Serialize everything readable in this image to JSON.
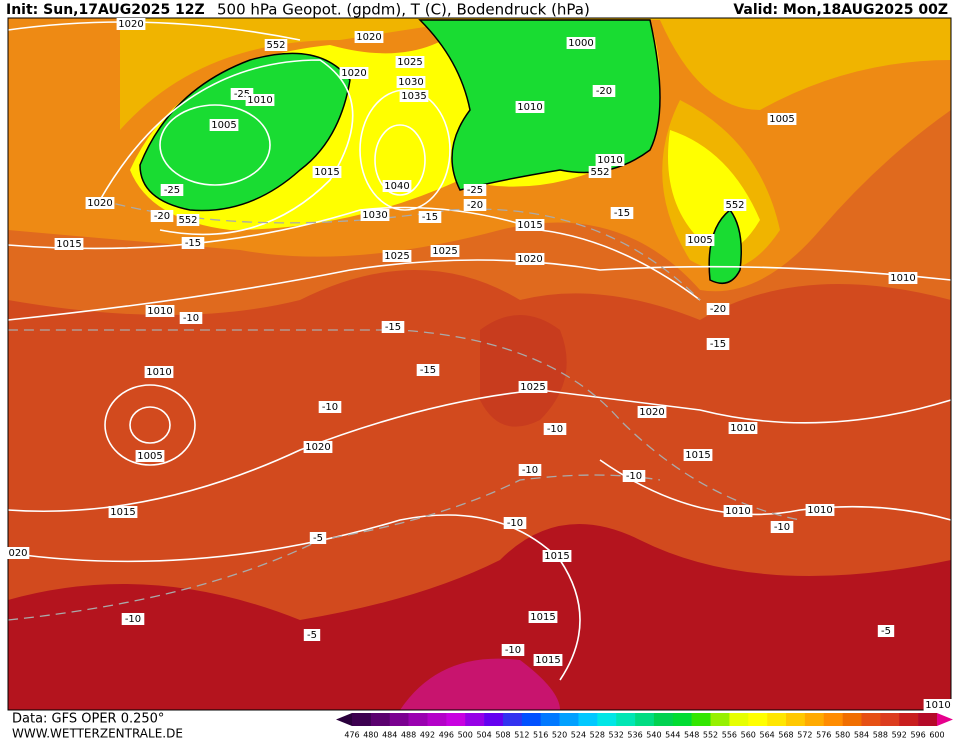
{
  "header": {
    "init": "Init: Sun,17AUG2025 12Z",
    "title": "500 hPa Geopot. (gpdm), T (C), Bodendruck (hPa)",
    "valid": "Valid: Mon,18AUG2025 00Z"
  },
  "footer": {
    "data_source": "Data: GFS OPER 0.250°",
    "website": "WWW.WETTERZENTRALE.DE"
  },
  "map": {
    "contour_labels": [
      "1020",
      "552",
      "1020",
      "1000",
      "1020",
      "1025",
      "1030",
      "1035",
      "-25",
      "1010",
      "1005",
      "-20",
      "1010",
      "1005",
      "-25",
      "1015",
      "1040",
      "1010",
      "552",
      "-25",
      "-20",
      "1020",
      "-20",
      "552",
      "1030",
      "-15",
      "1015",
      "-15",
      "552",
      "1015",
      "-15",
      "1025",
      "1025",
      "1020",
      "1005",
      "1010",
      "1010",
      "-10",
      "-20",
      "-15",
      "-15",
      "-15",
      "1010",
      "1025",
      "-10",
      "1020",
      "1010",
      "1005",
      "1020",
      "-10",
      "1015",
      "-10",
      "-10",
      "1015",
      "1010",
      "1010",
      "-10",
      "-10",
      "-5",
      "020",
      "1015",
      "-10",
      "1015",
      "-5",
      "-10",
      "1015",
      "-5",
      "1010"
    ]
  },
  "colorbar": {
    "levels": [
      476,
      480,
      484,
      488,
      492,
      496,
      500,
      504,
      508,
      512,
      516,
      520,
      524,
      528,
      532,
      536,
      540,
      544,
      548,
      552,
      556,
      560,
      564,
      568,
      572,
      576,
      580,
      584,
      588,
      592,
      596,
      600
    ],
    "colors": [
      "#3c0050",
      "#5a006e",
      "#7a0090",
      "#9a00b0",
      "#b400c8",
      "#c800e0",
      "#9600e6",
      "#6400f0",
      "#3232f0",
      "#0050ff",
      "#0078ff",
      "#00a0ff",
      "#00c8ff",
      "#00e6e6",
      "#00e6b4",
      "#00dc82",
      "#00d250",
      "#00dc32",
      "#32e600",
      "#96f000",
      "#e6ff00",
      "#ffff00",
      "#ffe600",
      "#ffc800",
      "#ffaa00",
      "#ff8c00",
      "#f06e00",
      "#e65014",
      "#dc3c1e",
      "#c81e1e",
      "#b40a28"
    ],
    "low_color": "#2a003c",
    "high_color": "#e6008c"
  }
}
